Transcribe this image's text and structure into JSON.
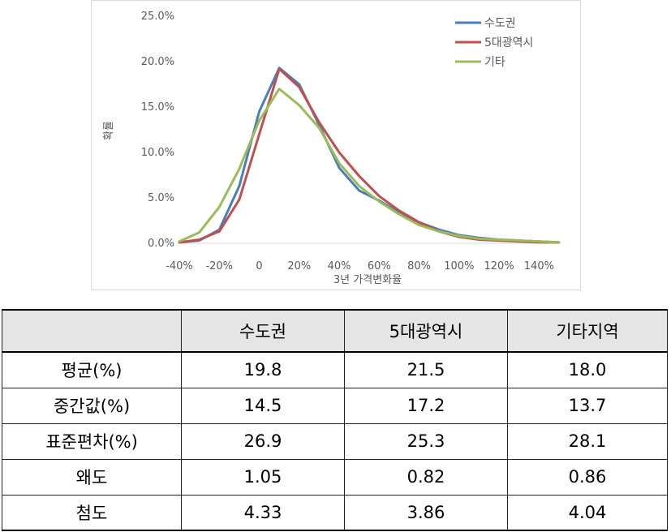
{
  "chart_data": {
    "type": "line",
    "xlabel": "3년 가격변화율",
    "ylabel": "확률",
    "x_ticks": [
      "-40%",
      "-20%",
      "0",
      "20%",
      "40%",
      "60%",
      "80%",
      "100%",
      "120%",
      "140%"
    ],
    "y_ticks": [
      "0.0%",
      "5.0%",
      "10.0%",
      "15.0%",
      "20.0%",
      "25.0%"
    ],
    "x": [
      -40,
      -30,
      -20,
      -10,
      0,
      10,
      20,
      30,
      40,
      50,
      60,
      70,
      80,
      90,
      100,
      110,
      120,
      130,
      140,
      150
    ],
    "xlim": [
      -40,
      150
    ],
    "ylim": [
      0,
      25
    ],
    "legend_position": "top-right",
    "series": [
      {
        "name": "수도권",
        "color": "#4a7ebb",
        "values": [
          0.1,
          0.3,
          1.5,
          6.3,
          14.5,
          19.3,
          17.5,
          13.0,
          8.3,
          5.8,
          4.7,
          3.4,
          2.3,
          1.5,
          0.9,
          0.6,
          0.4,
          0.3,
          0.2,
          0.1
        ]
      },
      {
        "name": "5대광역시",
        "color": "#c0504d",
        "values": [
          0.1,
          0.4,
          1.3,
          4.8,
          12.0,
          19.2,
          17.2,
          13.3,
          10.0,
          7.4,
          5.2,
          3.6,
          2.3,
          1.3,
          0.7,
          0.4,
          0.3,
          0.2,
          0.1,
          0.1
        ]
      },
      {
        "name": "기타",
        "color": "#9bbb59",
        "values": [
          0.2,
          1.2,
          4.0,
          8.2,
          13.5,
          17.0,
          15.2,
          12.7,
          8.8,
          6.3,
          4.6,
          3.2,
          2.0,
          1.3,
          0.8,
          0.5,
          0.4,
          0.3,
          0.2,
          0.1
        ]
      }
    ]
  },
  "table": {
    "headers": [
      "",
      "수도권",
      "5대광역시",
      "기타지역"
    ],
    "rows": [
      {
        "label": "평균(%)",
        "values": [
          "19.8",
          "21.5",
          "18.0"
        ]
      },
      {
        "label": "중간값(%)",
        "values": [
          "14.5",
          "17.2",
          "13.7"
        ]
      },
      {
        "label": "표준편차(%)",
        "values": [
          "26.9",
          "25.3",
          "28.1"
        ]
      },
      {
        "label": "왜도",
        "values": [
          "1.05",
          "0.82",
          "0.86"
        ]
      },
      {
        "label": "첨도",
        "values": [
          "4.33",
          "3.86",
          "4.04"
        ]
      }
    ]
  }
}
